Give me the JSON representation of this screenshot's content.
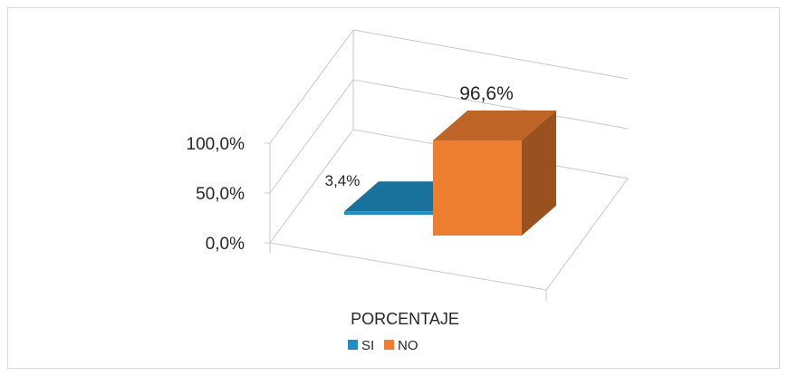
{
  "chart_data": {
    "type": "bar",
    "title": "",
    "categories": [
      "PORCENTAJE"
    ],
    "xlabel": "PORCENTAJE",
    "ylabel": "",
    "ylim": [
      0,
      100
    ],
    "yticks": [
      "0,0%",
      "50,0%",
      "100,0%"
    ],
    "series": [
      {
        "name": "SI",
        "values": [
          3.4
        ],
        "label": "3,4%",
        "color": "#1f8fc3"
      },
      {
        "name": "NO",
        "values": [
          96.6
        ],
        "label": "96,6%",
        "color": "#ed7d31"
      }
    ],
    "legend": {
      "placement": "bottom",
      "items": [
        "SI",
        "NO"
      ]
    },
    "grid": true,
    "style": "3d-column"
  }
}
